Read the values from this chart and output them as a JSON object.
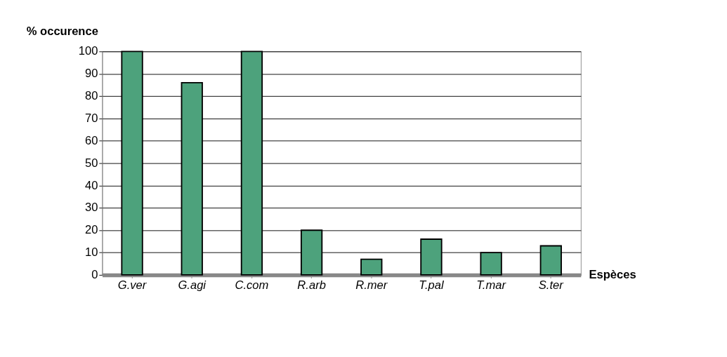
{
  "chart_data": {
    "type": "bar",
    "title": "% occurence",
    "xlabel": "Espèces",
    "categories": [
      "G.ver",
      "G.agi",
      "C.com",
      "R.arb",
      "R.mer",
      "T.pal",
      "T.mar",
      "S.ter"
    ],
    "values": [
      100,
      86,
      100,
      20,
      7,
      16,
      10,
      13
    ],
    "color": "#4da27c",
    "ylim": [
      0,
      100
    ],
    "yticks": [
      0,
      10,
      20,
      30,
      40,
      50,
      60,
      70,
      80,
      90,
      100
    ],
    "grid": "y"
  }
}
